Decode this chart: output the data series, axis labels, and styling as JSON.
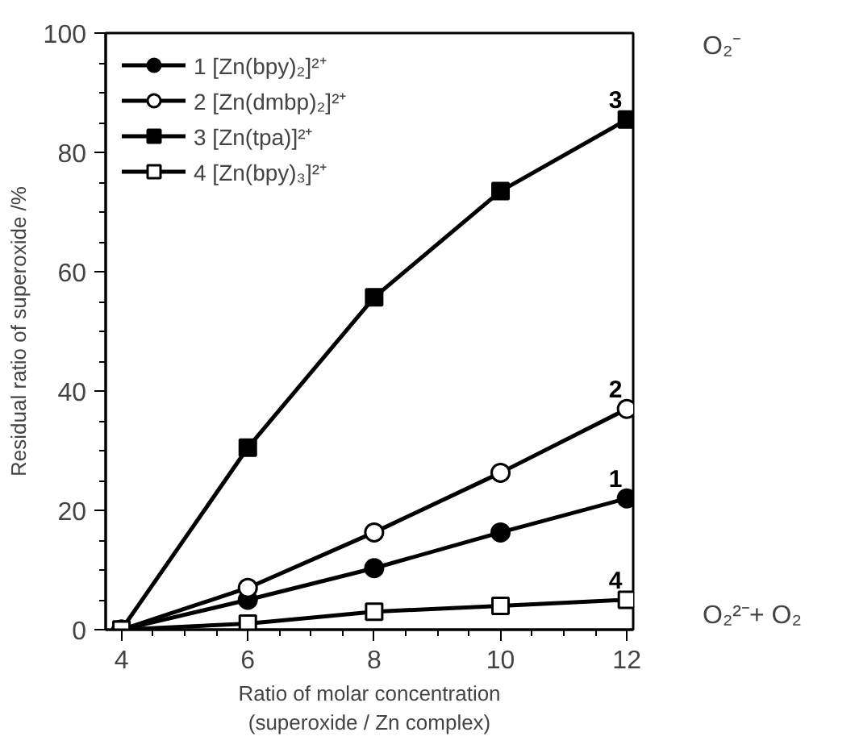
{
  "chart_data": {
    "type": "line",
    "xlabel": "Ratio of molar concentration\n(superoxide / Zn complex)",
    "ylabel": "Residual ratio of superoxide /%",
    "x": [
      4,
      6,
      8,
      10,
      12
    ],
    "series": [
      {
        "name": "1 [Zn(bpy)₂]²⁺",
        "color": "#000000",
        "marker": "circle",
        "colors": [
          "#000000",
          "#000000",
          "#000000",
          "#000000",
          "#000000"
        ],
        "values": [
          0,
          5,
          10.3,
          16.3,
          22
        ]
      },
      {
        "name": "2 [Zn(dmbp)₂]²⁺",
        "color": "#000000",
        "marker": "circle",
        "colors": [
          "#ffffff",
          "#ffffff",
          "#ffffff",
          "#ffffff",
          "#ffffff"
        ],
        "values": [
          0,
          7,
          16.3,
          26.3,
          37
        ]
      },
      {
        "name": "3 [Zn(tpa)]²⁺",
        "color": "#000000",
        "marker": "square",
        "colors": [
          "#000000",
          "#000000",
          "#000000",
          "#000000",
          "#000000"
        ],
        "values": [
          0,
          30.5,
          55.7,
          73.5,
          85.5
        ]
      },
      {
        "name": "4 [Zn(bpy)₃]²⁺",
        "color": "#000000",
        "marker": "square",
        "colors": [
          "#ffffff",
          "#ffffff",
          "#ffffff",
          "#ffffff",
          "#ffffff"
        ],
        "values": [
          0,
          1,
          3,
          4,
          5
        ]
      }
    ],
    "xlim": [
      3.75,
      12.1
    ],
    "xticks": [
      4,
      6,
      8,
      10,
      12
    ],
    "ylim": [
      0,
      100
    ],
    "yticks": [
      0,
      20,
      40,
      60,
      80,
      100
    ],
    "grid": false,
    "legend": "top left",
    "line_style": "solid",
    "annotations": [
      {
        "text": "1",
        "y": 22
      },
      {
        "text": "2",
        "y": 37
      },
      {
        "text": "3",
        "y": 85.5
      },
      {
        "text": "4",
        "y": 5
      },
      "O₂⁻",
      "O₂²⁻+ O₂"
    ]
  }
}
